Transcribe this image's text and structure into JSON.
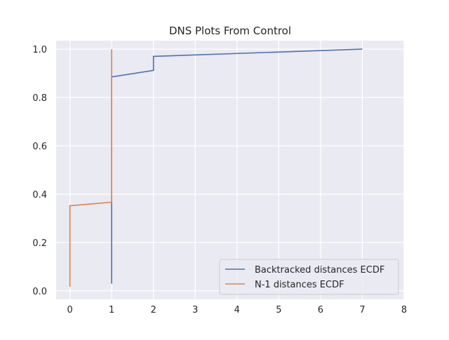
{
  "chart_data": {
    "type": "line",
    "title": "DNS Plots From Control",
    "xlabel": "",
    "ylabel": "",
    "xlim": [
      -0.33,
      8.0
    ],
    "ylim": [
      -0.035,
      1.035
    ],
    "xticks": [
      0,
      1,
      2,
      3,
      4,
      5,
      6,
      7,
      8
    ],
    "yticks": [
      0.0,
      0.2,
      0.4,
      0.6,
      0.8,
      1.0
    ],
    "xtick_labels": [
      "0",
      "1",
      "2",
      "3",
      "4",
      "5",
      "6",
      "7",
      "8"
    ],
    "ytick_labels": [
      "0.0",
      "0.2",
      "0.4",
      "0.6",
      "0.8",
      "1.0"
    ],
    "grid": true,
    "background": "#eaeaf2",
    "legend_position": "bottom-right",
    "series": [
      {
        "name": "Backtracked distances ECDF",
        "color": "#4c72b0",
        "points": [
          [
            1,
            0.03
          ],
          [
            1,
            0.885
          ],
          [
            2,
            0.912
          ],
          [
            2,
            0.97
          ],
          [
            7,
            1.0
          ]
        ]
      },
      {
        "name": "N-1 distances ECDF",
        "color": "#dd8452",
        "points": [
          [
            0,
            0.017
          ],
          [
            0,
            0.352
          ],
          [
            1,
            0.367
          ],
          [
            1,
            1.0
          ]
        ]
      }
    ]
  }
}
